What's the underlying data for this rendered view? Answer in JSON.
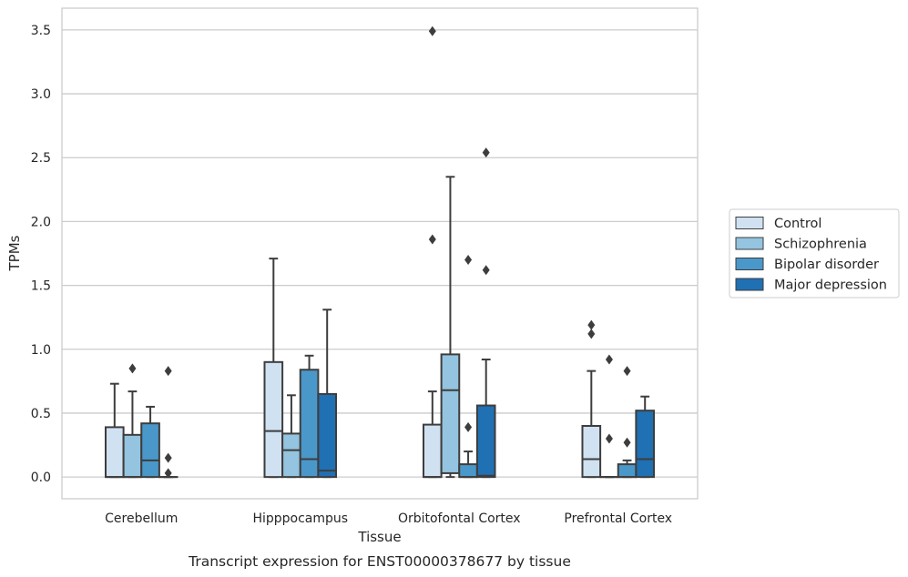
{
  "chart_data": {
    "type": "box",
    "caption": "Transcript expression for ENST00000378677 by tissue",
    "xlabel": "Tissue",
    "ylabel": "TPMs",
    "ylim": [
      -0.17,
      3.67
    ],
    "yticks": [
      "0.0",
      "0.5",
      "1.0",
      "1.5",
      "2.0",
      "2.5",
      "3.0",
      "3.5"
    ],
    "ytick_values": [
      0,
      0.5,
      1.0,
      1.5,
      2.0,
      2.5,
      3.0,
      3.5
    ],
    "grid": "horizontal",
    "legend_position": "right",
    "categories": [
      "Cerebellum",
      "Hipppocampus",
      "Orbitofontal Cortex",
      "Prefrontal Cortex"
    ],
    "series": [
      {
        "name": "Control",
        "color": "#d0e1f2",
        "boxes": [
          {
            "q1": 0.0,
            "median": 0.0,
            "q3": 0.39,
            "whislo": 0.0,
            "whishi": 0.73,
            "fliers": []
          },
          {
            "q1": 0.0,
            "median": 0.36,
            "q3": 0.9,
            "whislo": 0.0,
            "whishi": 1.71,
            "fliers": []
          },
          {
            "q1": 0.0,
            "median": 0.0,
            "q3": 0.41,
            "whislo": 0.0,
            "whishi": 0.67,
            "fliers": [
              1.86,
              3.49
            ]
          },
          {
            "q1": 0.0,
            "median": 0.14,
            "q3": 0.4,
            "whislo": 0.0,
            "whishi": 0.83,
            "fliers": [
              1.12,
              1.19
            ]
          }
        ]
      },
      {
        "name": "Schizophrenia",
        "color": "#94c4df",
        "boxes": [
          {
            "q1": 0.0,
            "median": 0.0,
            "q3": 0.33,
            "whislo": 0.0,
            "whishi": 0.67,
            "fliers": [
              0.85
            ]
          },
          {
            "q1": 0.0,
            "median": 0.21,
            "q3": 0.34,
            "whislo": 0.0,
            "whishi": 0.64,
            "fliers": []
          },
          {
            "q1": 0.03,
            "median": 0.68,
            "q3": 0.96,
            "whislo": 0.0,
            "whishi": 2.35,
            "fliers": []
          },
          {
            "q1": 0.0,
            "median": 0.0,
            "q3": 0.0,
            "whislo": 0.0,
            "whishi": 0.0,
            "fliers": [
              0.3,
              0.92
            ]
          }
        ]
      },
      {
        "name": "Bipolar disorder",
        "color": "#4a98c9",
        "boxes": [
          {
            "q1": 0.0,
            "median": 0.13,
            "q3": 0.42,
            "whislo": 0.0,
            "whishi": 0.55,
            "fliers": []
          },
          {
            "q1": 0.0,
            "median": 0.14,
            "q3": 0.84,
            "whislo": 0.0,
            "whishi": 0.95,
            "fliers": []
          },
          {
            "q1": 0.0,
            "median": 0.0,
            "q3": 0.1,
            "whislo": 0.0,
            "whishi": 0.2,
            "fliers": [
              0.39,
              1.7
            ]
          },
          {
            "q1": 0.0,
            "median": 0.0,
            "q3": 0.1,
            "whislo": 0.0,
            "whishi": 0.13,
            "fliers": [
              0.27,
              0.83
            ]
          }
        ]
      },
      {
        "name": "Major depression",
        "color": "#2070b4",
        "boxes": [
          {
            "q1": 0.0,
            "median": 0.0,
            "q3": 0.0,
            "whislo": 0.0,
            "whishi": 0.0,
            "fliers": [
              0.03,
              0.15,
              0.83
            ]
          },
          {
            "q1": 0.0,
            "median": 0.05,
            "q3": 0.65,
            "whislo": 0.0,
            "whishi": 1.31,
            "fliers": []
          },
          {
            "q1": 0.0,
            "median": 0.01,
            "q3": 0.56,
            "whislo": 0.0,
            "whishi": 0.92,
            "fliers": [
              1.62,
              2.54
            ]
          },
          {
            "q1": 0.0,
            "median": 0.14,
            "q3": 0.52,
            "whislo": 0.0,
            "whishi": 0.63,
            "fliers": []
          }
        ]
      }
    ]
  }
}
